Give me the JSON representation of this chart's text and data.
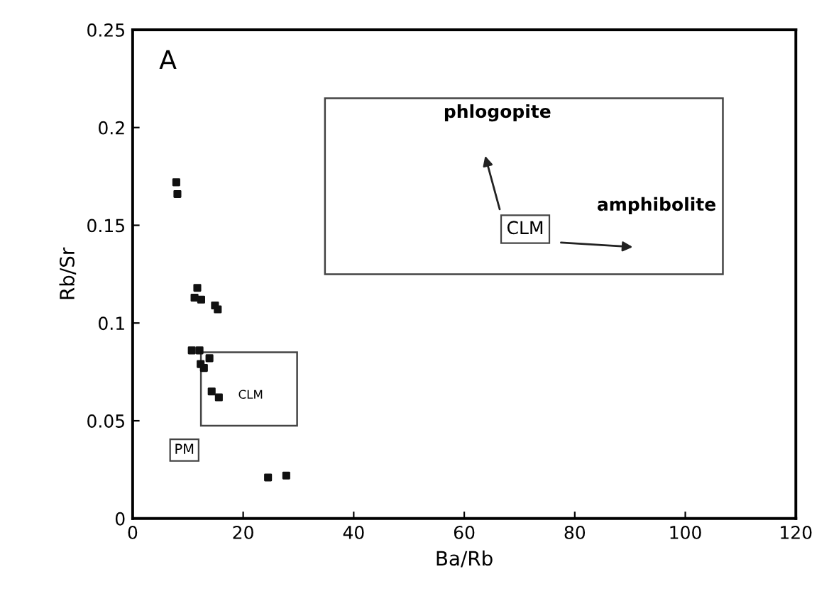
{
  "chart_data": {
    "type": "scatter",
    "xlabel": "Ba/Rb",
    "ylabel": "Rb/Sr",
    "x": [
      7.9,
      8.1,
      11.7,
      11.2,
      12.4,
      14.9,
      15.4,
      10.7,
      12.1,
      13.9,
      12.3,
      12.9,
      14.3,
      15.6,
      24.5,
      27.8
    ],
    "values": [
      0.172,
      0.166,
      0.118,
      0.113,
      0.112,
      0.109,
      0.107,
      0.086,
      0.086,
      0.082,
      0.079,
      0.077,
      0.065,
      0.062,
      0.021,
      0.022
    ],
    "color": "#111111",
    "marker": "square",
    "grid": false,
    "xlim": [
      0,
      120
    ],
    "xticks": [
      0,
      20,
      40,
      60,
      80,
      100,
      120
    ],
    "ylim": [
      0,
      0.25
    ],
    "yticks": [
      0,
      0.05,
      0.1,
      0.15,
      0.2,
      0.25
    ],
    "annotations": [
      "A",
      "CLM",
      "PM",
      "CLM",
      "phlogopite",
      "amphibolite"
    ]
  }
}
